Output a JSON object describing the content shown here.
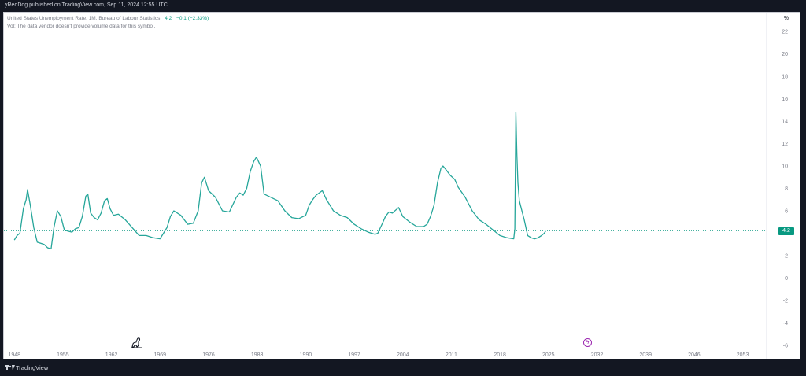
{
  "header": {
    "publish_line": "yRedDog published on TradingView.com, Sep 11, 2024 12:55 UTC"
  },
  "legend": {
    "symbol": "United States Unemployment Rate, 1M, Bureau of Labour Statistics",
    "value": "4.2",
    "change": "−0.1 (−2.33%)",
    "volume_note": "Vol: The data vendor doesn't provide volume data for this symbol."
  },
  "axis": {
    "unit_label": "%"
  },
  "last_price_label": "4.2",
  "footer": {
    "brand": "TradingView"
  },
  "colors": {
    "line": "#26a69a",
    "accent": "#089981",
    "event": "#9c27b0"
  },
  "chart_data": {
    "type": "line",
    "title": "",
    "xlabel": "",
    "ylabel": "",
    "x_ticks": [
      "1948",
      "1955",
      "1962",
      "1969",
      "1976",
      "1983",
      "1990",
      "1997",
      "2004",
      "2011",
      "2018",
      "2025",
      "2032",
      "2039",
      "2046",
      "2053"
    ],
    "y_ticks": [
      "22",
      "20",
      "18",
      "16",
      "14",
      "12",
      "10",
      "8",
      "6",
      "4",
      "2",
      "0",
      "-2",
      "-4",
      "-6"
    ],
    "xlim": [
      1946.5,
      2056
    ],
    "ylim": [
      -6.5,
      23
    ],
    "grid": false,
    "series": [
      {
        "name": "",
        "x": [
          1948,
          1948.4,
          1948.8,
          1949.3,
          1949.7,
          1949.9,
          1950.3,
          1950.8,
          1951.3,
          1951.8,
          1952.3,
          1952.8,
          1953.3,
          1953.7,
          1954.2,
          1954.7,
          1955.2,
          1955.7,
          1956.3,
          1956.8,
          1957.3,
          1957.8,
          1958.3,
          1958.6,
          1959.0,
          1959.5,
          1960.0,
          1960.5,
          1961.0,
          1961.4,
          1961.8,
          1962.3,
          1963.0,
          1964.0,
          1965.0,
          1966.0,
          1967.0,
          1968.0,
          1969.0,
          1970.0,
          1970.5,
          1971.0,
          1972.0,
          1973.0,
          1973.8,
          1974.5,
          1975.0,
          1975.4,
          1976.0,
          1977.0,
          1978.0,
          1979.0,
          1980.0,
          1980.5,
          1981.0,
          1981.5,
          1982.0,
          1982.5,
          1982.9,
          1983.5,
          1984.0,
          1985.0,
          1986.0,
          1987.0,
          1988.0,
          1989.0,
          1990.0,
          1990.5,
          1991.0,
          1991.5,
          1992.4,
          1993.0,
          1994.0,
          1995.0,
          1996.0,
          1997.0,
          1998.0,
          1999.0,
          2000.0,
          2000.4,
          2001.0,
          2001.5,
          2002.0,
          2002.5,
          2003.4,
          2004.0,
          2005.0,
          2006.0,
          2007.0,
          2007.5,
          2008.0,
          2008.5,
          2009.0,
          2009.5,
          2009.8,
          2010.2,
          2010.8,
          2011.5,
          2012.0,
          2013.0,
          2014.0,
          2015.0,
          2016.0,
          2017.0,
          2018.0,
          2019.0,
          2020.0,
          2020.15,
          2020.3,
          2020.45,
          2020.6,
          2020.8,
          2021.0,
          2021.5,
          2022.0,
          2022.5,
          2023.0,
          2023.5,
          2024.0,
          2024.4,
          2024.6
        ],
        "values": [
          3.4,
          3.8,
          4.0,
          6.2,
          7.0,
          7.9,
          6.5,
          4.5,
          3.2,
          3.1,
          3.0,
          2.7,
          2.6,
          4.5,
          6.0,
          5.5,
          4.3,
          4.2,
          4.1,
          4.4,
          4.5,
          5.5,
          7.3,
          7.5,
          5.8,
          5.4,
          5.2,
          5.8,
          6.9,
          7.1,
          6.2,
          5.6,
          5.7,
          5.2,
          4.5,
          3.8,
          3.8,
          3.6,
          3.5,
          4.5,
          5.5,
          6.0,
          5.6,
          4.8,
          4.9,
          6.0,
          8.5,
          9.0,
          7.8,
          7.2,
          6.0,
          5.9,
          7.2,
          7.6,
          7.4,
          8.0,
          9.5,
          10.4,
          10.8,
          10.0,
          7.5,
          7.2,
          6.9,
          6.0,
          5.4,
          5.3,
          5.6,
          6.5,
          7.0,
          7.4,
          7.8,
          7.0,
          6.0,
          5.6,
          5.4,
          4.8,
          4.4,
          4.1,
          3.9,
          4.0,
          4.8,
          5.5,
          5.9,
          5.8,
          6.3,
          5.5,
          5.0,
          4.6,
          4.6,
          4.8,
          5.5,
          6.5,
          8.5,
          9.8,
          10.0,
          9.7,
          9.2,
          8.8,
          8.1,
          7.2,
          6.0,
          5.2,
          4.8,
          4.3,
          3.8,
          3.6,
          3.5,
          4.4,
          14.8,
          11.0,
          8.5,
          6.9,
          6.4,
          5.2,
          3.8,
          3.6,
          3.5,
          3.6,
          3.8,
          4.0,
          4.2
        ]
      }
    ],
    "last_value": 4.2
  }
}
